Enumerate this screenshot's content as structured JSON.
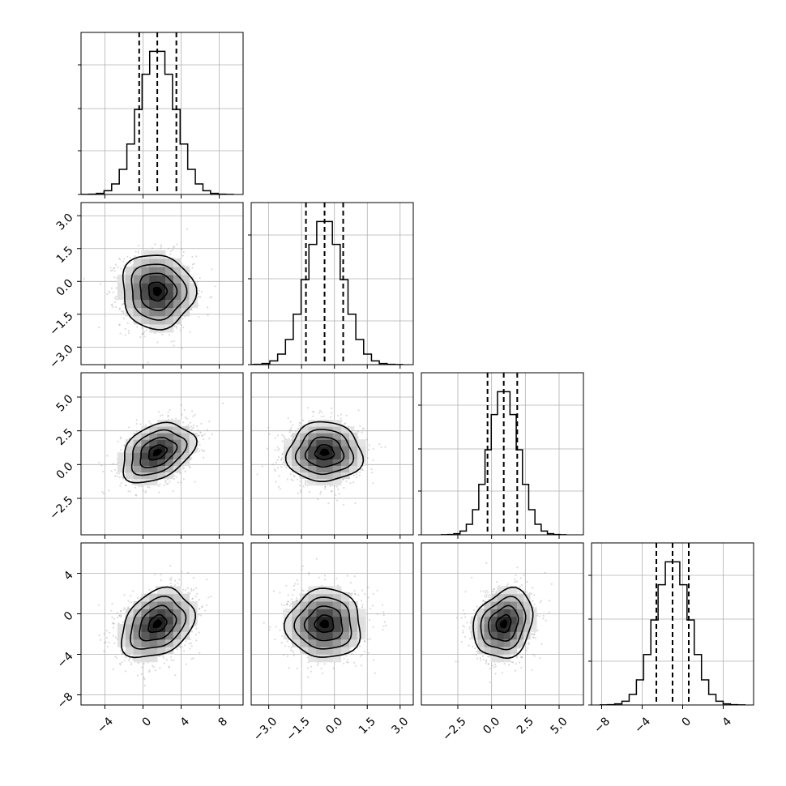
{
  "chart_data": {
    "type": "corner",
    "n_params": 4,
    "grid": true,
    "params": [
      {
        "index": 0,
        "range": [
          -6.5,
          10.5
        ],
        "ticks": [
          -4,
          0,
          4,
          8
        ],
        "tick_labels": [
          "−4",
          "0",
          "4",
          "8"
        ],
        "mean": 1.5,
        "std": 1.9,
        "quantiles": [
          -0.4,
          1.5,
          3.5
        ]
      },
      {
        "index": 1,
        "range": [
          -3.8,
          3.6
        ],
        "ticks": [
          -3.0,
          -1.5,
          0.0,
          1.5,
          3.0
        ],
        "tick_labels": [
          "−3.0",
          "−1.5",
          "0.0",
          "1.5",
          "3.0"
        ],
        "mean": -0.45,
        "std": 0.85,
        "quantiles": [
          -1.3,
          -0.45,
          0.4
        ]
      },
      {
        "index": 2,
        "range": [
          -5.2,
          6.8
        ],
        "ticks": [
          -2.5,
          0.0,
          2.5,
          5.0
        ],
        "tick_labels": [
          "−2.5",
          "0.0",
          "2.5",
          "5.0"
        ],
        "mean": 0.9,
        "std": 1.1,
        "quantiles": [
          -0.3,
          0.9,
          1.9
        ]
      },
      {
        "index": 3,
        "range": [
          -9.0,
          7.0
        ],
        "ticks": [
          -8,
          -4,
          0,
          4
        ],
        "tick_labels": [
          "−8",
          "−4",
          "0",
          "4"
        ],
        "mean": -1.0,
        "std": 1.7,
        "quantiles": [
          -2.6,
          -1.0,
          0.6
        ]
      }
    ],
    "correlations": [
      {
        "x": 0,
        "y": 1,
        "rho": -0.05
      },
      {
        "x": 0,
        "y": 2,
        "rho": 0.35
      },
      {
        "x": 1,
        "y": 2,
        "rho": 0.0
      },
      {
        "x": 0,
        "y": 3,
        "rho": 0.3
      },
      {
        "x": 1,
        "y": 3,
        "rho": 0.0
      },
      {
        "x": 2,
        "y": 3,
        "rho": 0.2
      }
    ],
    "contour_levels_sigma": [
      0.5,
      1.0,
      1.5,
      2.0
    ],
    "histogram_bins": 20
  }
}
